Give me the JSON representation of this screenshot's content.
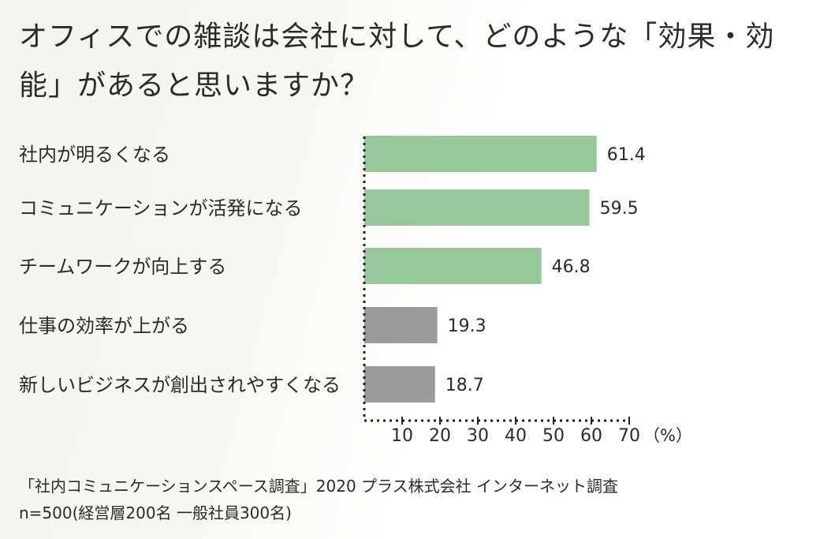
{
  "title": "オフィスでの雑談は会社に対して、どのような「効果・効能」があると思いますか？",
  "chart_data": {
    "type": "bar",
    "orientation": "horizontal",
    "categories": [
      "社内が明るくなる",
      "コミュニケーションが活発になる",
      "チームワークが向上する",
      "仕事の効率が上がる",
      "新しいビジネスが創出されやすくなる"
    ],
    "values": [
      61.4,
      59.5,
      46.8,
      19.3,
      18.7
    ],
    "value_labels": [
      "61.4",
      "59.5",
      "46.8",
      "19.3",
      "18.7"
    ],
    "bar_colors": [
      "#98c89c",
      "#98c89c",
      "#98c89c",
      "#9b9b9b",
      "#9b9b9b"
    ],
    "xlim": [
      0,
      70
    ],
    "xticks": [
      10,
      20,
      30,
      40,
      50,
      60,
      70
    ],
    "xunit": "（%）",
    "grid": false
  },
  "notes": {
    "source": "「社内コミュニケーションスペース調査」2020 プラス株式会社  インターネット調査",
    "sample": "n=500(経営層200名 一般社員300名)"
  }
}
